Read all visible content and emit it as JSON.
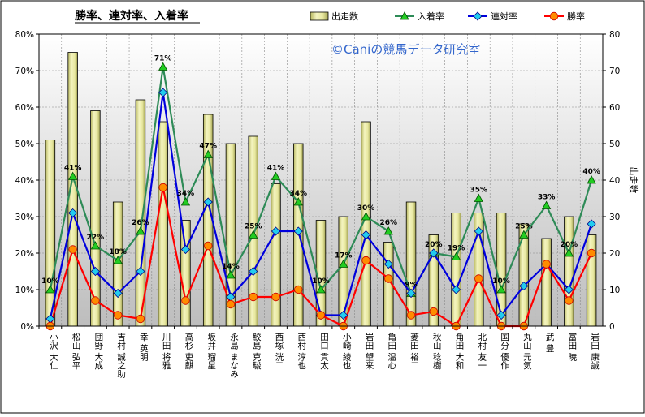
{
  "chart_data": {
    "type": "bar+line",
    "title": "勝率、連対率、入着率",
    "watermark": "©Caniの競馬データ研究室",
    "y2label": "出走数",
    "ylim": [
      0,
      80
    ],
    "y2lim": [
      0,
      80
    ],
    "yticks": [
      "0%",
      "10%",
      "20%",
      "30%",
      "40%",
      "50%",
      "60%",
      "70%",
      "80%"
    ],
    "y2ticks": [
      "0",
      "10",
      "20",
      "30",
      "40",
      "50",
      "60",
      "70",
      "80"
    ],
    "categories": [
      "小沢 大仁",
      "松山 弘平",
      "団野 大成",
      "吉村 誠之助",
      "幸 英明",
      "川田 将雅",
      "高杉 吏麒",
      "坂井 瑠星",
      "永島 まなみ",
      "鮫島 克駿",
      "西塚 洸二",
      "西村 淳也",
      "田口 貫太",
      "小崎 綾也",
      "岩田 望来",
      "亀田 温心",
      "菱田 裕二",
      "秋山 稔樹",
      "角田 大和",
      "北村 友一",
      "国分 優作",
      "丸山 元気",
      "武 豊",
      "富田 暁",
      "岩田 康誠"
    ],
    "series": [
      {
        "name": "出走数",
        "type": "bar",
        "color": "#e8e8a0",
        "values": [
          51,
          75,
          59,
          34,
          62,
          56,
          29,
          58,
          50,
          52,
          39,
          50,
          29,
          30,
          56,
          23,
          34,
          25,
          31,
          31,
          31,
          28,
          24,
          30,
          25
        ]
      },
      {
        "name": "入着率",
        "type": "line",
        "color": "#2e8b57",
        "marker": "triangle",
        "markerColor": "#22cc22",
        "values": [
          10,
          41,
          22,
          18,
          26,
          71,
          34,
          47,
          14,
          25,
          41,
          34,
          10,
          17,
          30,
          26,
          9,
          20,
          19,
          35,
          10,
          25,
          33,
          20,
          40
        ]
      },
      {
        "name": "連対率",
        "type": "line",
        "color": "#0000dd",
        "marker": "diamond",
        "markerColor": "#22ccee",
        "values": [
          2,
          31,
          15,
          9,
          15,
          64,
          21,
          34,
          8,
          15,
          26,
          26,
          3,
          3,
          25,
          17,
          9,
          20,
          10,
          26,
          3,
          11,
          17,
          10,
          28
        ]
      },
      {
        "name": "勝率",
        "type": "line",
        "color": "#ff0000",
        "marker": "circle",
        "markerColor": "#ff8c00",
        "values": [
          0,
          21,
          7,
          3,
          2,
          38,
          7,
          22,
          6,
          8,
          8,
          10,
          3,
          0,
          18,
          13,
          3,
          4,
          0,
          13,
          0,
          0,
          17,
          7,
          20
        ]
      }
    ],
    "data_labels": [
      "10%",
      "41%",
      "22%",
      "18%",
      "26%",
      "71%",
      "34%",
      "47%",
      "14%",
      "25%",
      "41%",
      "34%",
      "10%",
      "17%",
      "30%",
      "26%",
      "9%",
      "20%",
      "19%",
      "35%",
      "10%",
      "25%",
      "33%",
      "20%",
      "40%"
    ],
    "legend_position": "top-right",
    "grid": true
  }
}
